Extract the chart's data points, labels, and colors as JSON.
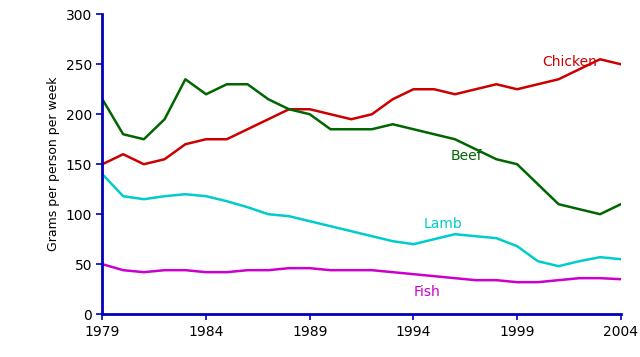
{
  "years": [
    1979,
    1980,
    1981,
    1982,
    1983,
    1984,
    1985,
    1986,
    1987,
    1988,
    1989,
    1990,
    1991,
    1992,
    1993,
    1994,
    1995,
    1996,
    1997,
    1998,
    1999,
    2000,
    2001,
    2002,
    2003,
    2004
  ],
  "chicken": [
    150,
    160,
    150,
    155,
    170,
    175,
    175,
    185,
    195,
    205,
    205,
    200,
    195,
    200,
    215,
    225,
    225,
    220,
    225,
    230,
    225,
    230,
    235,
    245,
    255,
    250
  ],
  "beef": [
    215,
    180,
    175,
    195,
    235,
    220,
    230,
    230,
    215,
    205,
    200,
    185,
    185,
    185,
    190,
    185,
    180,
    175,
    165,
    155,
    150,
    130,
    110,
    105,
    100,
    110
  ],
  "lamb": [
    140,
    118,
    115,
    118,
    120,
    118,
    113,
    107,
    100,
    98,
    93,
    88,
    83,
    78,
    73,
    70,
    75,
    80,
    78,
    76,
    68,
    53,
    48,
    53,
    57,
    55
  ],
  "fish": [
    50,
    44,
    42,
    44,
    44,
    42,
    42,
    44,
    44,
    46,
    46,
    44,
    44,
    44,
    42,
    40,
    38,
    36,
    34,
    34,
    32,
    32,
    34,
    36,
    36,
    35
  ],
  "chicken_color": "#cc0000",
  "beef_color": "#006600",
  "lamb_color": "#00cccc",
  "fish_color": "#cc00cc",
  "ylabel": "Grams per person per week",
  "ylim": [
    0,
    300
  ],
  "xlim": [
    1979,
    2004
  ],
  "xticks": [
    1979,
    1984,
    1989,
    1994,
    1999,
    2004
  ],
  "yticks": [
    0,
    50,
    100,
    150,
    200,
    250,
    300
  ],
  "label_chicken": "Chicken",
  "label_beef": "Beef",
  "label_lamb": "Lamb",
  "label_fish": "Fish",
  "linewidth": 1.8,
  "spine_color": "#0000bb",
  "background_color": "#ffffff",
  "label_fontsize": 10,
  "tick_fontsize": 10,
  "ylabel_fontsize": 9
}
